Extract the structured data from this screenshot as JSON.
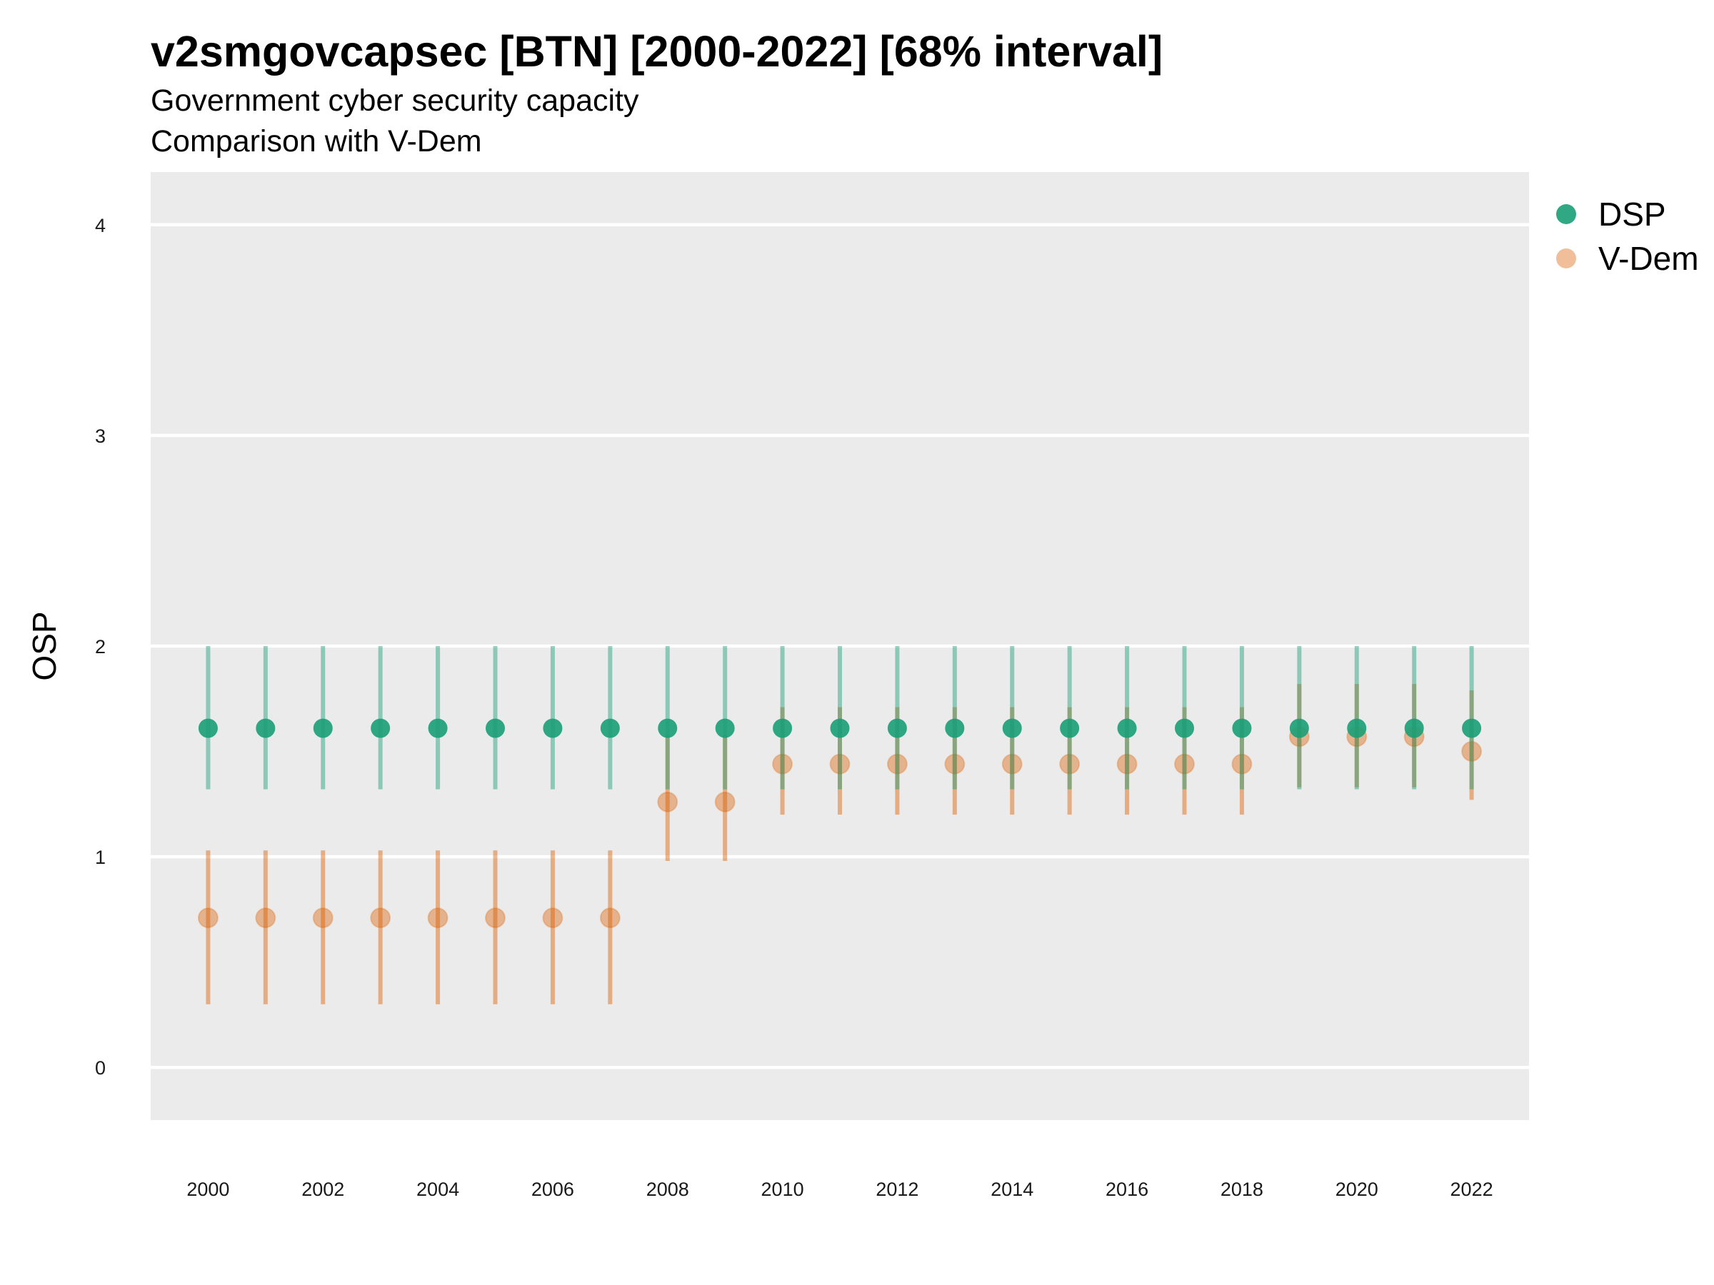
{
  "chart_data": {
    "type": "scatter",
    "title": "v2smgovcapsec [BTN] [2000-2022] [68% interval]",
    "subtitle": "Government cyber security capacity",
    "subtitle2": "Comparison with V-Dem",
    "xlabel": "",
    "ylabel": "OSP",
    "ylim": [
      -0.25,
      4.25
    ],
    "xlim": [
      1999.0,
      2023.0
    ],
    "y_ticks": [
      "0",
      "1",
      "2",
      "3",
      "4"
    ],
    "x_ticks": [
      "2000",
      "2002",
      "2004",
      "2006",
      "2008",
      "2010",
      "2012",
      "2014",
      "2016",
      "2018",
      "2020",
      "2022"
    ],
    "grid": true,
    "legend_position": "right",
    "series": [
      {
        "name": "DSP",
        "color": "#1b9e77",
        "x": [
          2000,
          2001,
          2002,
          2003,
          2004,
          2005,
          2006,
          2007,
          2008,
          2009,
          2010,
          2011,
          2012,
          2013,
          2014,
          2015,
          2016,
          2017,
          2018,
          2019,
          2020,
          2021,
          2022
        ],
        "y": [
          1.61,
          1.61,
          1.61,
          1.61,
          1.61,
          1.61,
          1.61,
          1.61,
          1.61,
          1.61,
          1.61,
          1.61,
          1.61,
          1.61,
          1.61,
          1.61,
          1.61,
          1.61,
          1.61,
          1.61,
          1.61,
          1.61,
          1.61
        ],
        "lower": [
          1.32,
          1.32,
          1.32,
          1.32,
          1.32,
          1.32,
          1.32,
          1.32,
          1.32,
          1.32,
          1.32,
          1.32,
          1.32,
          1.32,
          1.32,
          1.32,
          1.32,
          1.32,
          1.32,
          1.32,
          1.32,
          1.32,
          1.32
        ],
        "upper": [
          2.0,
          2.0,
          2.0,
          2.0,
          2.0,
          2.0,
          2.0,
          2.0,
          2.0,
          2.0,
          2.0,
          2.0,
          2.0,
          2.0,
          2.0,
          2.0,
          2.0,
          2.0,
          2.0,
          2.0,
          2.0,
          2.0,
          2.0
        ]
      },
      {
        "name": "V-Dem",
        "color": "#d95f02",
        "x": [
          2000,
          2001,
          2002,
          2003,
          2004,
          2005,
          2006,
          2007,
          2008,
          2009,
          2010,
          2011,
          2012,
          2013,
          2014,
          2015,
          2016,
          2017,
          2018,
          2019,
          2020,
          2021,
          2022
        ],
        "y": [
          0.71,
          0.71,
          0.71,
          0.71,
          0.71,
          0.71,
          0.71,
          0.71,
          1.26,
          1.26,
          1.44,
          1.44,
          1.44,
          1.44,
          1.44,
          1.44,
          1.44,
          1.44,
          1.44,
          1.57,
          1.57,
          1.57,
          1.5
        ],
        "lower": [
          0.3,
          0.3,
          0.3,
          0.3,
          0.3,
          0.3,
          0.3,
          0.3,
          0.98,
          0.98,
          1.2,
          1.2,
          1.2,
          1.2,
          1.2,
          1.2,
          1.2,
          1.2,
          1.2,
          1.33,
          1.33,
          1.33,
          1.27
        ],
        "upper": [
          1.03,
          1.03,
          1.03,
          1.03,
          1.03,
          1.03,
          1.03,
          1.03,
          1.58,
          1.58,
          1.71,
          1.71,
          1.71,
          1.71,
          1.71,
          1.71,
          1.71,
          1.71,
          1.71,
          1.82,
          1.82,
          1.82,
          1.79
        ]
      }
    ]
  }
}
